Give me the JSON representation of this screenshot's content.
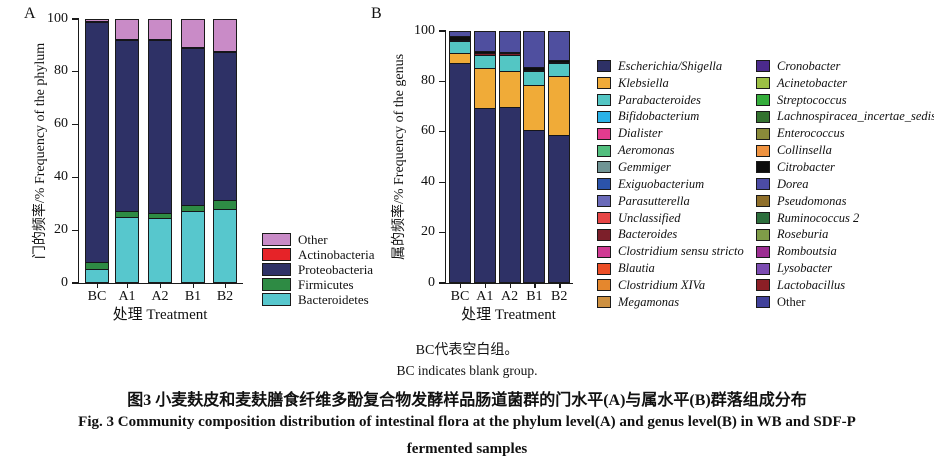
{
  "figure": {
    "note_cn": "BC代表空白组。",
    "note_en": "BC indicates blank group.",
    "title_cn": "图3  小麦麸皮和麦麸膳食纤维多酚复合物发酵样品肠道菌群的门水平(A)与属水平(B)群落组成分布",
    "title_en_line1": "Fig. 3  Community composition distribution of intestinal flora at the phylum level(A) and genus level(B) in WB and SDF-P",
    "title_en_line2": "fermented samples"
  },
  "chart_data": [
    {
      "id": "phylum",
      "type": "bar",
      "stacked": true,
      "panel_label": "A",
      "ylabel": "门的频率/%  Frequency of the phylum",
      "xlabel": "处理  Treatment",
      "ylim": [
        0,
        100
      ],
      "yticks": [
        0,
        20,
        40,
        60,
        80,
        100
      ],
      "grid": false,
      "categories": [
        "BC",
        "A1",
        "A2",
        "B1",
        "B2"
      ],
      "series": [
        {
          "name": "Bacteroidetes",
          "color": "#57c7cd",
          "values": [
            5,
            25,
            24.5,
            27,
            28
          ]
        },
        {
          "name": "Firmicutes",
          "color": "#2e8b44",
          "values": [
            2.5,
            2,
            2,
            2.5,
            3.5
          ]
        },
        {
          "name": "Proteobacteria",
          "color": "#2e3166",
          "values": [
            92,
            65.5,
            66,
            60,
            56.3
          ]
        },
        {
          "name": "Actinobacteria",
          "color": "#e62328",
          "values": [
            0.3,
            0.3,
            0.3,
            0.3,
            0.3
          ]
        },
        {
          "name": "Other",
          "color": "#c98bc7",
          "values": [
            0.2,
            7.2,
            7.2,
            10.2,
            11.9
          ]
        }
      ],
      "legend": {
        "position": "right-bottom",
        "entries": [
          {
            "label": "Other",
            "color": "#c98bc7"
          },
          {
            "label": "Actinobacteria",
            "color": "#e62328"
          },
          {
            "label": "Proteobacteria",
            "color": "#2e3166"
          },
          {
            "label": "Firmicutes",
            "color": "#2e8b44"
          },
          {
            "label": "Bacteroidetes",
            "color": "#57c7cd"
          }
        ]
      }
    },
    {
      "id": "genus",
      "type": "bar",
      "stacked": true,
      "panel_label": "B",
      "ylabel": "属的频率/%  Frequency of the genus",
      "xlabel": "处理  Treatment",
      "ylim": [
        0,
        100
      ],
      "yticks": [
        0,
        20,
        40,
        60,
        80,
        100
      ],
      "grid": false,
      "categories": [
        "BC",
        "A1",
        "A2",
        "B1",
        "B2"
      ],
      "series": [
        {
          "name": "Escherichia/Shigella",
          "color": "#2e3166",
          "values": [
            87.5,
            69.5,
            70,
            61,
            59
          ]
        },
        {
          "name": "Klebsiella",
          "color": "#f0ab38",
          "values": [
            4,
            16,
            14.5,
            18,
            23.5
          ]
        },
        {
          "name": "Parabacteroides",
          "color": "#53c6c4",
          "values": [
            5,
            5.5,
            6.5,
            5.5,
            5
          ]
        },
        {
          "name": "Bacteroides",
          "color": "#7c1f2a",
          "values": [
            0.5,
            0.5,
            0.5,
            0.5,
            0.5
          ]
        },
        {
          "name": "Citrobacter",
          "color": "#0d0d0d",
          "values": [
            1.5,
            1,
            0.5,
            1,
            1
          ]
        },
        {
          "name": "Other",
          "color": "#4f4f9f",
          "values": [
            1.5,
            7.5,
            8,
            14,
            11
          ]
        }
      ],
      "legend": {
        "position": "right",
        "italic": true,
        "col1": [
          {
            "label": "Escherichia/Shigella",
            "color": "#2e3166"
          },
          {
            "label": "Klebsiella",
            "color": "#f0ab38"
          },
          {
            "label": "Parabacteroides",
            "color": "#53c6c4"
          },
          {
            "label": "Bifidobacterium",
            "color": "#2ab2e8"
          },
          {
            "label": "Dialister",
            "color": "#e23b8e"
          },
          {
            "label": "Aeromonas",
            "color": "#52bf7e"
          },
          {
            "label": "Gemmiger",
            "color": "#6f9494"
          },
          {
            "label": "Exiguobacterium",
            "color": "#2b53aa"
          },
          {
            "label": "Parasutterella",
            "color": "#6a6ab9"
          },
          {
            "label": "Unclassified",
            "color": "#e64545"
          },
          {
            "label": "Bacteroides",
            "color": "#7c1f2a"
          },
          {
            "label": "Clostridium sensu stricto",
            "color": "#d03a93"
          },
          {
            "label": "Blautia",
            "color": "#ec4e26"
          },
          {
            "label": "Clostridium XIVa",
            "color": "#e5872d"
          },
          {
            "label": "Megamonas",
            "color": "#cd9040"
          }
        ],
        "col2": [
          {
            "label": "Cronobacter",
            "color": "#4b2a8c"
          },
          {
            "label": "Acinetobacter",
            "color": "#9cbf45"
          },
          {
            "label": "Streptococcus",
            "color": "#35ae3c"
          },
          {
            "label": "Lachnospiracea_incertae_sedis",
            "color": "#33722f"
          },
          {
            "label": "Enterococcus",
            "color": "#8a8a3a"
          },
          {
            "label": "Collinsella",
            "color": "#ef9340"
          },
          {
            "label": "Citrobacter",
            "color": "#0d0d0d"
          },
          {
            "label": "Dorea",
            "color": "#4c4ca5"
          },
          {
            "label": "Pseudomonas",
            "color": "#8f6f2a"
          },
          {
            "label": "Ruminococcus 2",
            "color": "#2c6e3c"
          },
          {
            "label": "Roseburia",
            "color": "#7f9c48"
          },
          {
            "label": "Romboutsia",
            "color": "#9c2d92"
          },
          {
            "label": "Lysobacter",
            "color": "#7c4cb2"
          },
          {
            "label": "Lactobacillus",
            "color": "#8c1f26"
          },
          {
            "label": "Other",
            "color": "#41419a"
          }
        ]
      }
    }
  ]
}
